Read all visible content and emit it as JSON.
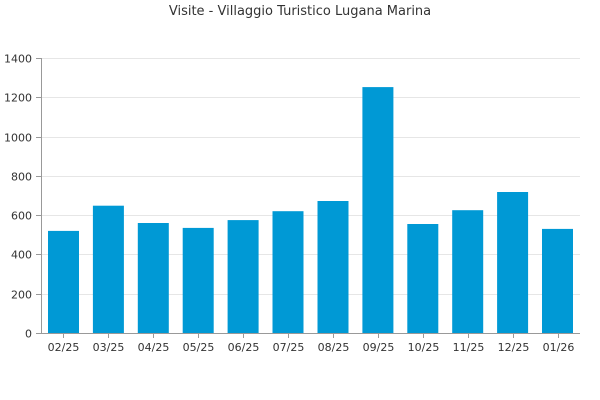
{
  "chart_data": {
    "type": "bar",
    "title": "Visite - Villaggio Turistico Lugana Marina",
    "categories": [
      "02/25",
      "03/25",
      "04/25",
      "05/25",
      "06/25",
      "07/25",
      "08/25",
      "09/25",
      "10/25",
      "11/25",
      "12/25",
      "01/26"
    ],
    "series": [
      {
        "values": [
          520,
          648,
          560,
          535,
          575,
          620,
          672,
          1252,
          555,
          625,
          718,
          530
        ],
        "color": "#0099d5"
      }
    ],
    "ylim": [
      0,
      1400
    ],
    "yticks": [
      "0",
      "200",
      "400",
      "600",
      "800",
      "1000",
      "1200",
      "1400"
    ],
    "grid": true,
    "legend": "none"
  }
}
